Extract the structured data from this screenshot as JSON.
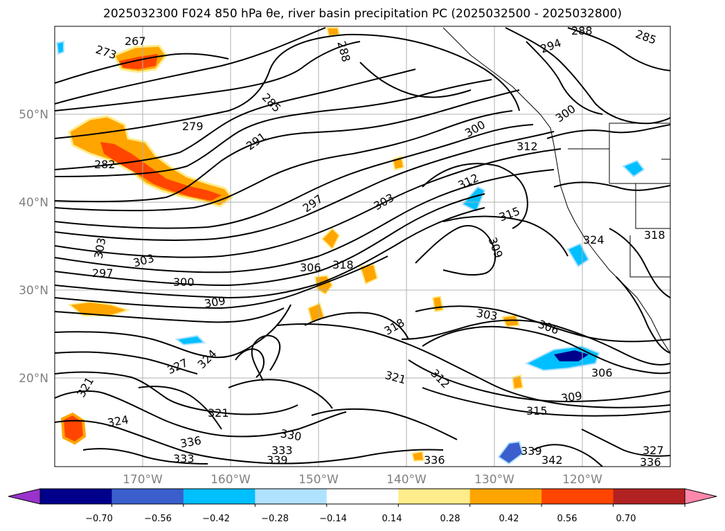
{
  "title": "2025032300 F024 850 hPa θe, river basin precipitation PC (2025032500 - 2025032800)",
  "map": {
    "lat_labels": [
      "50°N",
      "40°N",
      "30°N",
      "20°N"
    ],
    "lon_labels": [
      "170°W",
      "160°W",
      "150°W",
      "140°W",
      "130°W",
      "120°W"
    ],
    "contour_labels": [
      "267",
      "273",
      "279",
      "282",
      "285",
      "288",
      "291",
      "294",
      "297",
      "300",
      "303",
      "306",
      "309",
      "312",
      "315",
      "318",
      "321",
      "324",
      "327",
      "330",
      "333",
      "336",
      "339",
      "342"
    ],
    "placed_contour_labels": [
      {
        "text": "267"
      },
      {
        "text": "273"
      },
      {
        "text": "279"
      },
      {
        "text": "282"
      },
      {
        "text": "285"
      },
      {
        "text": "288"
      },
      {
        "text": "288"
      },
      {
        "text": "285"
      },
      {
        "text": "294"
      },
      {
        "text": "291"
      },
      {
        "text": "300"
      },
      {
        "text": "300"
      },
      {
        "text": "312"
      },
      {
        "text": "312"
      },
      {
        "text": "315"
      },
      {
        "text": "303"
      },
      {
        "text": "297"
      },
      {
        "text": "303"
      },
      {
        "text": "297"
      },
      {
        "text": "303"
      },
      {
        "text": "300"
      },
      {
        "text": "309"
      },
      {
        "text": "306"
      },
      {
        "text": "318"
      },
      {
        "text": "303"
      },
      {
        "text": "306"
      },
      {
        "text": "318"
      },
      {
        "text": "309"
      },
      {
        "text": "321"
      },
      {
        "text": "327"
      },
      {
        "text": "324"
      },
      {
        "text": "321"
      },
      {
        "text": "312"
      },
      {
        "text": "306"
      },
      {
        "text": "309"
      },
      {
        "text": "315"
      },
      {
        "text": "324"
      },
      {
        "text": "321"
      },
      {
        "text": "330"
      },
      {
        "text": "336"
      },
      {
        "text": "333"
      },
      {
        "text": "339"
      },
      {
        "text": "336"
      },
      {
        "text": "333"
      },
      {
        "text": "339"
      },
      {
        "text": "342"
      },
      {
        "text": "327"
      },
      {
        "text": "336"
      },
      {
        "text": "318"
      },
      {
        "text": "324"
      }
    ]
  },
  "colorbar": {
    "tick_labels": [
      "−0.70",
      "−0.56",
      "−0.42",
      "−0.28",
      "−0.14",
      "0.14",
      "0.28",
      "0.42",
      "0.56",
      "0.70"
    ],
    "colors": [
      "#9933cc",
      "#00008b",
      "#3a5fcd",
      "#00bfff",
      "#b0e2ff",
      "#ffffff",
      "#ffec8b",
      "#ffa500",
      "#ff4500",
      "#b22222",
      "#ff88aa"
    ]
  },
  "precip_colors": {
    "pos_light": "#ffec8b",
    "pos_mid": "#ffa500",
    "pos_high": "#ff4500",
    "pos_max": "#b22222",
    "neg_light": "#b0e2ff",
    "neg_mid": "#00bfff",
    "neg_high": "#3a5fcd",
    "neg_max": "#00008b"
  }
}
